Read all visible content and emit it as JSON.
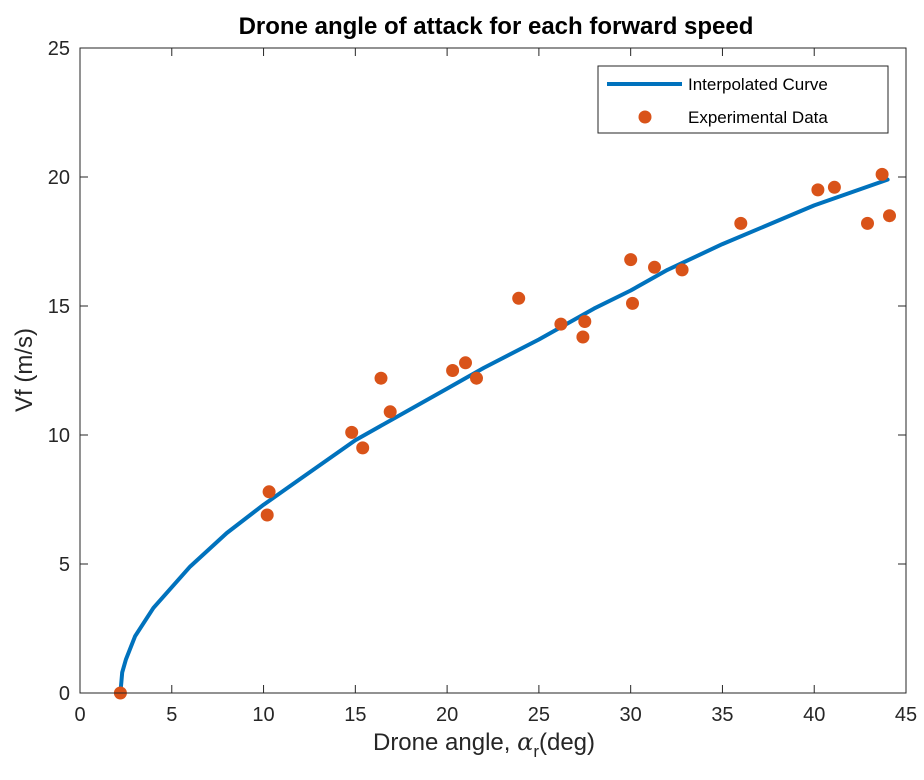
{
  "chart_data": {
    "type": "scatter",
    "title": "Drone angle of attack for each forward speed",
    "xlabel_prefix": "Drone angle,",
    "xlabel_symbol": "α",
    "xlabel_subscript": "r",
    "xlabel_suffix": "(deg)",
    "ylabel": "Vf (m/s)",
    "xlim": [
      0,
      45
    ],
    "ylim": [
      0,
      25
    ],
    "xticks": [
      0,
      5,
      10,
      15,
      20,
      25,
      30,
      35,
      40,
      45
    ],
    "yticks": [
      0,
      5,
      10,
      15,
      20,
      25
    ],
    "grid": false,
    "legend_position": "top-right",
    "legend": [
      {
        "label": "Interpolated Curve",
        "kind": "line",
        "color": "#0072BD"
      },
      {
        "label": "Experimental Data",
        "kind": "marker",
        "color": "#D95319"
      }
    ],
    "curve": {
      "name": "Interpolated Curve",
      "color": "#0072BD",
      "x": [
        2.2,
        2.3,
        2.5,
        3,
        4,
        5,
        6,
        8,
        10,
        12,
        15,
        18,
        20,
        22,
        25,
        28,
        30,
        32,
        35,
        38,
        40,
        42,
        44
      ],
      "y": [
        0,
        0.8,
        1.3,
        2.2,
        3.3,
        4.1,
        4.9,
        6.2,
        7.3,
        8.3,
        9.8,
        11.0,
        11.8,
        12.6,
        13.7,
        14.9,
        15.6,
        16.4,
        17.4,
        18.3,
        18.9,
        19.4,
        19.9
      ]
    },
    "series": [
      {
        "name": "Experimental Data",
        "color": "#D95319",
        "points": [
          [
            2.2,
            0.0
          ],
          [
            10.2,
            6.9
          ],
          [
            10.3,
            7.8
          ],
          [
            14.8,
            10.1
          ],
          [
            15.4,
            9.5
          ],
          [
            16.4,
            12.2
          ],
          [
            16.9,
            10.9
          ],
          [
            20.3,
            12.5
          ],
          [
            21.0,
            12.8
          ],
          [
            21.6,
            12.2
          ],
          [
            23.9,
            15.3
          ],
          [
            26.2,
            14.3
          ],
          [
            27.4,
            13.8
          ],
          [
            27.5,
            14.4
          ],
          [
            30.0,
            16.8
          ],
          [
            30.1,
            15.1
          ],
          [
            31.3,
            16.5
          ],
          [
            32.8,
            16.4
          ],
          [
            36.0,
            18.2
          ],
          [
            40.2,
            19.5
          ],
          [
            41.1,
            19.6
          ],
          [
            42.9,
            18.2
          ],
          [
            43.7,
            20.1
          ],
          [
            44.1,
            18.5
          ]
        ]
      }
    ]
  }
}
